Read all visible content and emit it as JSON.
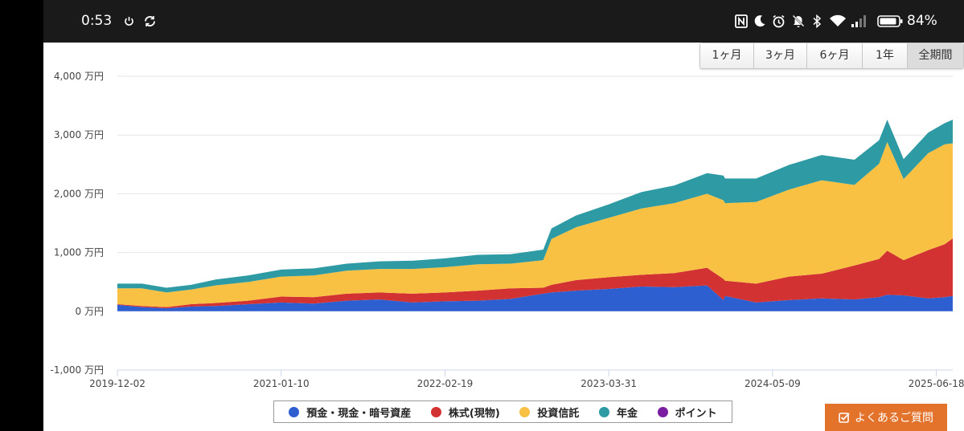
{
  "status_bar": {
    "time": "0:53",
    "battery_percent": "84%",
    "icons": [
      "power-icon",
      "sync-icon",
      "nfc-icon",
      "moon-icon",
      "alarm-icon",
      "notifications-off-icon",
      "bluetooth-icon",
      "wifi-icon",
      "signal-icon",
      "battery-icon"
    ]
  },
  "range_buttons": [
    {
      "label": "1ヶ月",
      "active": false
    },
    {
      "label": "3ヶ月",
      "active": false
    },
    {
      "label": "6ヶ月",
      "active": false
    },
    {
      "label": "1年",
      "active": false
    },
    {
      "label": "全期間",
      "active": true
    }
  ],
  "chart_data": {
    "type": "area",
    "stacked": true,
    "title": "",
    "xlabel": "",
    "ylabel": "",
    "ylim": [
      -1000,
      4000
    ],
    "y_unit": "万円",
    "y_ticks": [
      "-1,000 万円",
      "0 万円",
      "1,000 万円",
      "2,000 万円",
      "3,000 万円",
      "4,000 万円"
    ],
    "y_tick_values": [
      -1000,
      0,
      1000,
      2000,
      3000,
      4000
    ],
    "x_ticks": [
      "2019-12-02",
      "2021-01-10",
      "2022-02-19",
      "2023-03-31",
      "2024-05-09",
      "2025-06-18"
    ],
    "x_tick_positions": [
      0,
      1,
      2,
      3,
      4,
      5
    ],
    "x_range": [
      0,
      5.1
    ],
    "grid": true,
    "legend_position": "bottom",
    "x": [
      0,
      0.15,
      0.3,
      0.45,
      0.6,
      0.8,
      1.0,
      1.2,
      1.4,
      1.6,
      1.8,
      2.0,
      2.2,
      2.4,
      2.6,
      2.65,
      2.8,
      3.0,
      3.2,
      3.4,
      3.6,
      3.7,
      3.71,
      3.9,
      4.1,
      4.3,
      4.5,
      4.65,
      4.7,
      4.8,
      4.95,
      5.05,
      5.1
    ],
    "series": [
      {
        "name": "預金・現金・暗号資産",
        "color": "#2e5fd1",
        "values": [
          110,
          70,
          50,
          80,
          90,
          120,
          150,
          130,
          180,
          200,
          150,
          170,
          180,
          210,
          300,
          320,
          350,
          380,
          420,
          410,
          440,
          190,
          260,
          150,
          190,
          220,
          200,
          240,
          280,
          270,
          220,
          240,
          260
        ]
      },
      {
        "name": "株式(現物)",
        "color": "#d23232",
        "values": [
          10,
          20,
          20,
          40,
          50,
          60,
          100,
          110,
          120,
          120,
          150,
          150,
          170,
          180,
          100,
          130,
          180,
          200,
          200,
          240,
          300,
          360,
          260,
          320,
          400,
          420,
          580,
          650,
          750,
          600,
          820,
          900,
          980
        ]
      },
      {
        "name": "投資信託",
        "color": "#f9c144",
        "values": [
          270,
          300,
          250,
          250,
          300,
          320,
          340,
          370,
          390,
          400,
          420,
          430,
          450,
          420,
          470,
          780,
          900,
          1010,
          1130,
          1190,
          1260,
          1340,
          1320,
          1390,
          1480,
          1590,
          1370,
          1620,
          1850,
          1380,
          1650,
          1700,
          1620
        ]
      },
      {
        "name": "年金",
        "color": "#2e9aa3",
        "values": [
          80,
          80,
          80,
          80,
          100,
          110,
          120,
          120,
          120,
          130,
          140,
          150,
          160,
          160,
          180,
          180,
          200,
          230,
          280,
          300,
          350,
          420,
          420,
          400,
          420,
          430,
          430,
          400,
          380,
          340,
          350,
          360,
          400
        ]
      },
      {
        "name": "ポイント",
        "color": "#7a1fa2",
        "values": [
          0,
          0,
          0,
          0,
          0,
          0,
          0,
          0,
          0,
          0,
          0,
          0,
          0,
          0,
          0,
          0,
          0,
          0,
          0,
          0,
          0,
          0,
          0,
          0,
          0,
          0,
          0,
          0,
          0,
          0,
          0,
          0,
          0
        ]
      }
    ]
  },
  "faq_button": {
    "label": "よくあるご質問"
  }
}
